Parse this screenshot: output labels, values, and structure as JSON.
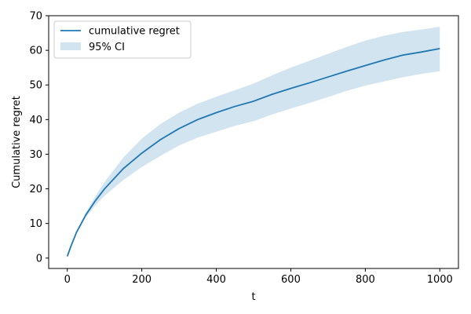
{
  "chart_data": {
    "type": "line",
    "title": "",
    "xlabel": "t",
    "ylabel": "Cumulative regret",
    "xlim": [
      -50,
      1050
    ],
    "ylim": [
      -3,
      70
    ],
    "xticks": [
      0,
      200,
      400,
      600,
      800,
      1000
    ],
    "yticks": [
      0,
      10,
      20,
      30,
      40,
      50,
      60,
      70
    ],
    "grid": false,
    "legend_placement": "upper-left",
    "series": [
      {
        "name": "cumulative regret",
        "color": "#1f77b4",
        "x": [
          0,
          10,
          25,
          50,
          75,
          100,
          150,
          200,
          250,
          300,
          350,
          400,
          450,
          500,
          550,
          600,
          650,
          700,
          750,
          800,
          850,
          900,
          950,
          1000
        ],
        "y": [
          0.5,
          3.5,
          7.5,
          12.5,
          16.5,
          20.0,
          25.8,
          30.3,
          34.2,
          37.4,
          40.0,
          42.0,
          43.8,
          45.3,
          47.3,
          49.0,
          50.6,
          52.3,
          54.0,
          55.6,
          57.2,
          58.6,
          59.5,
          60.5
        ]
      }
    ],
    "band": {
      "name": "95% CI",
      "color": "#1f77b4",
      "opacity": 0.2,
      "x": [
        0,
        10,
        25,
        50,
        75,
        100,
        150,
        200,
        250,
        300,
        350,
        400,
        450,
        500,
        550,
        600,
        650,
        700,
        750,
        800,
        850,
        900,
        950,
        1000
      ],
      "lower": [
        0.5,
        3.4,
        7.2,
        11.8,
        15.2,
        18.0,
        22.5,
        26.3,
        29.5,
        32.5,
        34.8,
        36.5,
        38.2,
        39.5,
        41.5,
        43.2,
        44.8,
        46.5,
        48.3,
        49.8,
        51.0,
        52.2,
        53.2,
        54.0
      ],
      "upper": [
        0.5,
        3.6,
        7.8,
        13.2,
        17.8,
        22.0,
        29.0,
        34.5,
        38.7,
        42.0,
        44.6,
        46.6,
        48.5,
        50.4,
        52.8,
        55.0,
        57.0,
        59.0,
        61.0,
        62.8,
        64.2,
        65.3,
        66.0,
        66.8
      ]
    }
  }
}
